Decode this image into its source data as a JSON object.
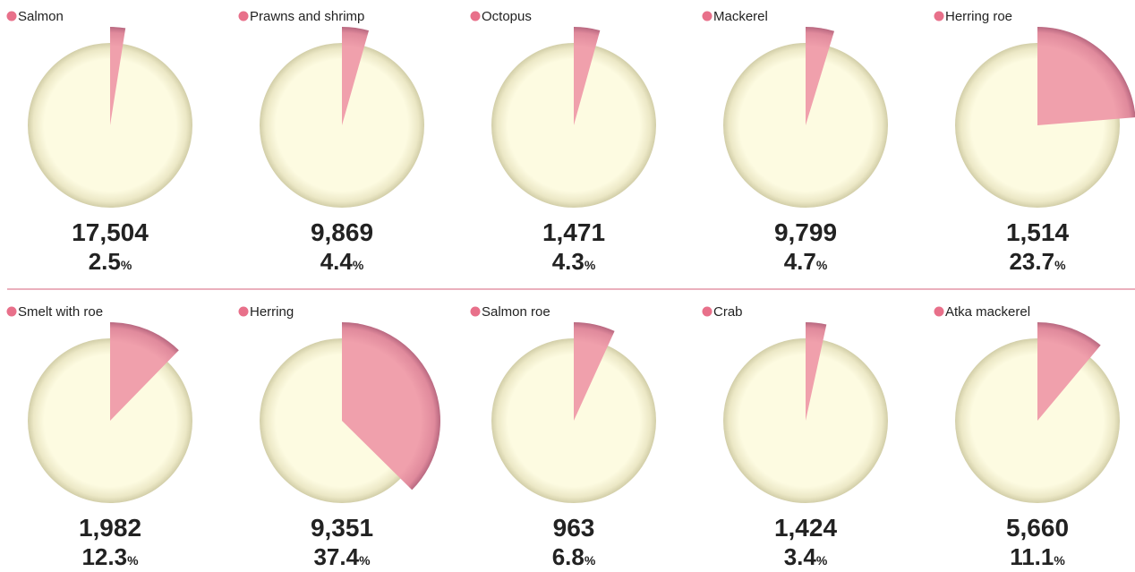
{
  "chart_data": [
    {
      "type": "pie",
      "title": "Salmon",
      "count": {
        "value": 17504,
        "label": "17,504"
      },
      "values": [
        2.5
      ],
      "unit": "%"
    },
    {
      "type": "pie",
      "title": "Prawns and shrimp",
      "count": {
        "value": 9869,
        "label": "9,869"
      },
      "values": [
        4.4
      ],
      "unit": "%"
    },
    {
      "type": "pie",
      "title": "Octopus",
      "count": {
        "value": 1471,
        "label": "1,471"
      },
      "values": [
        4.3
      ],
      "unit": "%"
    },
    {
      "type": "pie",
      "title": "Mackerel",
      "count": {
        "value": 9799,
        "label": "9,799"
      },
      "values": [
        4.7
      ],
      "unit": "%"
    },
    {
      "type": "pie",
      "title": "Herring roe",
      "count": {
        "value": 1514,
        "label": "1,514"
      },
      "values": [
        23.7
      ],
      "unit": "%"
    },
    {
      "type": "pie",
      "title": "Smelt with roe",
      "count": {
        "value": 1982,
        "label": "1,982"
      },
      "values": [
        12.3
      ],
      "unit": "%"
    },
    {
      "type": "pie",
      "title": "Herring",
      "count": {
        "value": 9351,
        "label": "9,351"
      },
      "values": [
        37.4
      ],
      "unit": "%"
    },
    {
      "type": "pie",
      "title": "Salmon roe",
      "count": {
        "value": 963,
        "label": "963"
      },
      "values": [
        6.8
      ],
      "unit": "%"
    },
    {
      "type": "pie",
      "title": "Crab",
      "count": {
        "value": 1424,
        "label": "1,424"
      },
      "values": [
        3.4
      ],
      "unit": "%"
    },
    {
      "type": "pie",
      "title": "Atka mackerel",
      "count": {
        "value": 5660,
        "label": "5,660"
      },
      "values": [
        11.1
      ],
      "unit": "%"
    }
  ]
}
